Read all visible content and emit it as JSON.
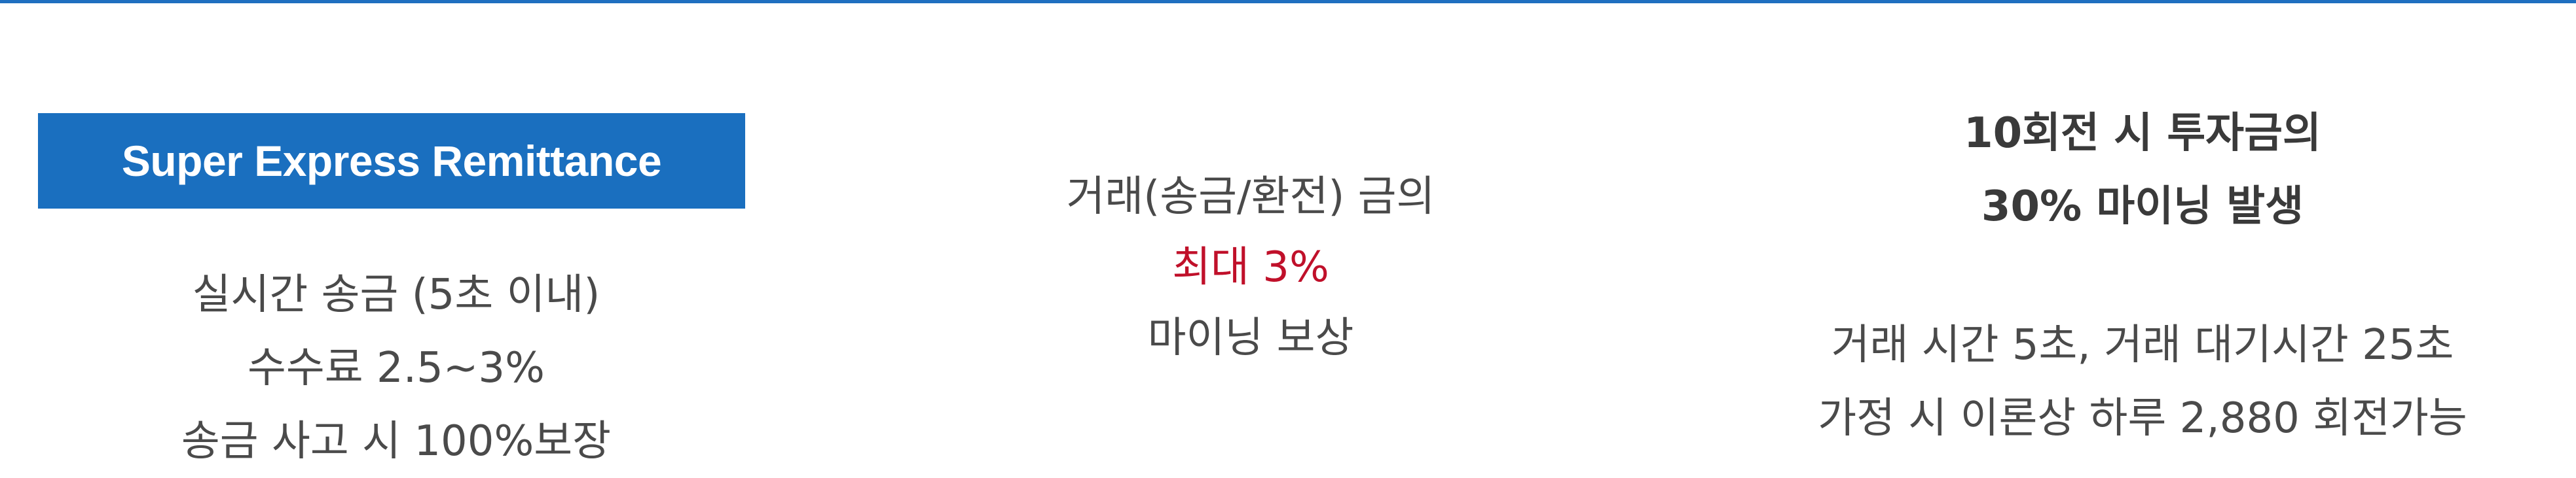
{
  "feature_1": {
    "badge": "Super Express Remittance",
    "lines": [
      "실시간 송금 (5초 이내)",
      "수수료 2.5~3%",
      "송금 사고 시 100%보장"
    ]
  },
  "feature_2": {
    "line_1": "거래(송금/환전) 금의",
    "highlight": "최대 3%",
    "line_3": "마이닝 보상",
    "accent_color": "#c0102a"
  },
  "feature_3": {
    "heading": [
      "10회전 시 투자금의",
      "30% 마이닝 발생"
    ],
    "lines": [
      "거래 시간 5초, 거래 대기시간 25초",
      "가정 시 이론상 하루 2,880 회전가능"
    ]
  },
  "colors": {
    "brand_blue": "#1a6fbf",
    "top_rule": "#1f6fc0"
  }
}
